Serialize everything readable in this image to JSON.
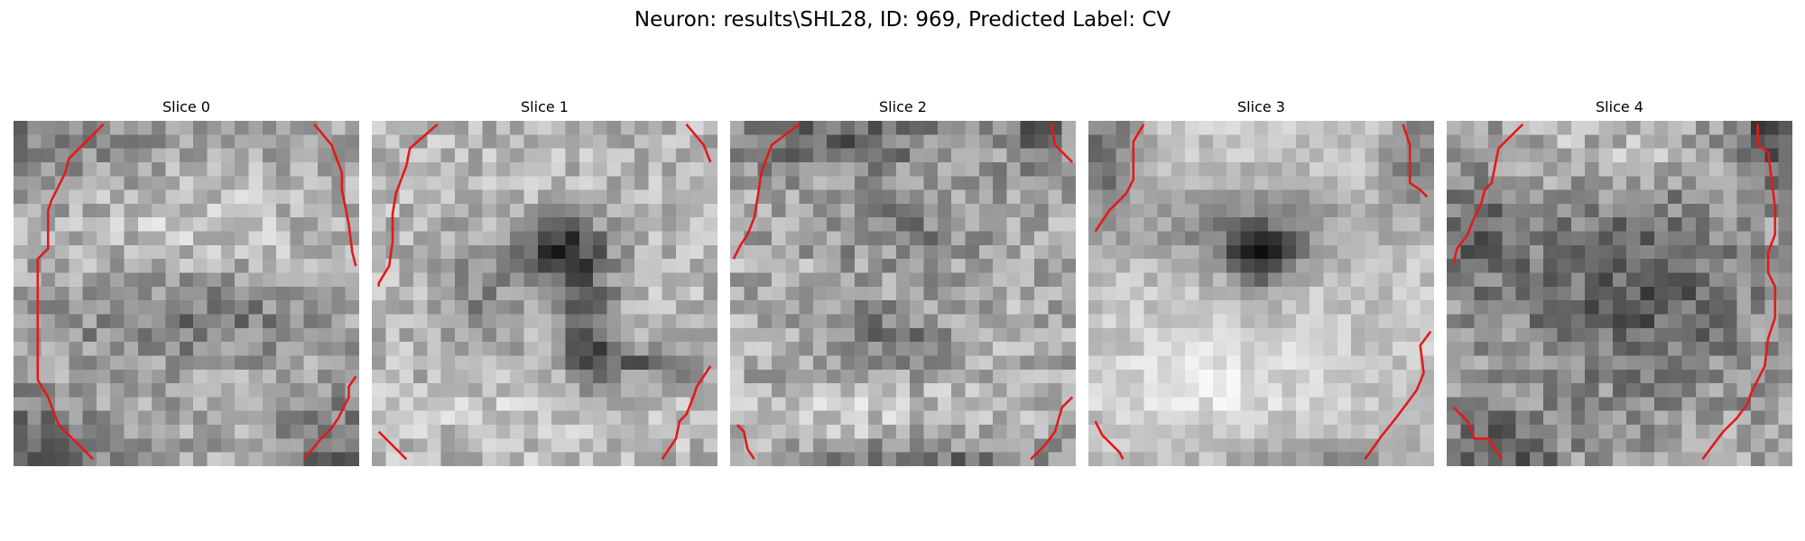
{
  "figure": {
    "title": "Neuron: results\\SHL28, ID: 969, Predicted Label: CV"
  },
  "overlay": {
    "contour_color": "#e31a1c",
    "colormap": "gray"
  },
  "slices": [
    {
      "title": "Slice 0"
    },
    {
      "title": "Slice 1"
    },
    {
      "title": "Slice 2"
    },
    {
      "title": "Slice 3"
    },
    {
      "title": "Slice 4"
    }
  ]
}
